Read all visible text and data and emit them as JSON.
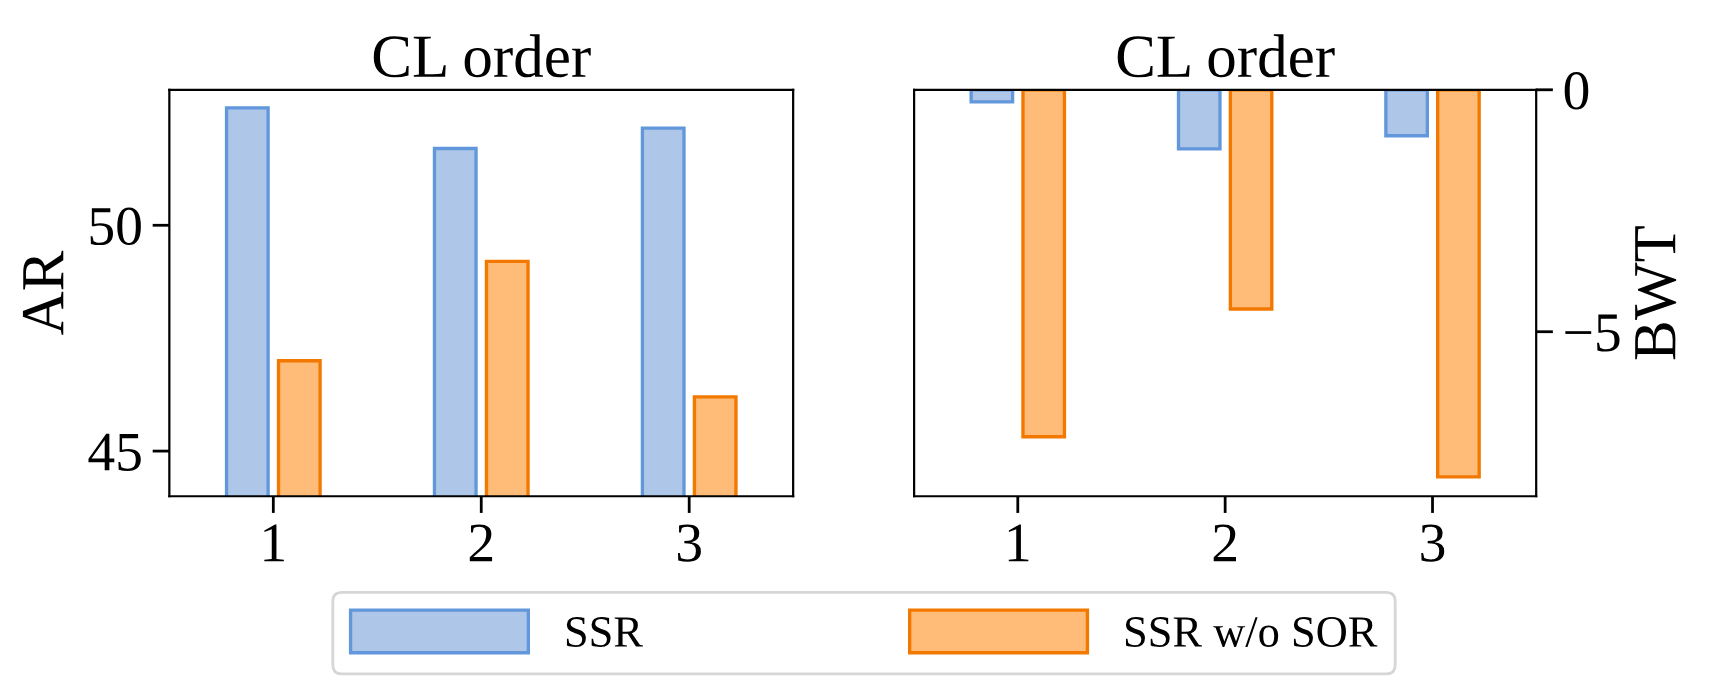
{
  "chart_data": [
    {
      "type": "bar",
      "title": "CL order",
      "ylabel": "AR",
      "categories": [
        "1",
        "2",
        "3"
      ],
      "series": [
        {
          "name": "SSR",
          "color": "#aec7e8",
          "values": [
            52.6,
            51.7,
            52.15
          ]
        },
        {
          "name": "SSR w/o SOR",
          "color": "#ffbb78",
          "values": [
            47.0,
            49.2,
            46.2
          ]
        }
      ],
      "ylim": [
        44,
        53
      ],
      "yticks": [
        45,
        50
      ],
      "grid": false,
      "legend": "bottom"
    },
    {
      "type": "bar",
      "title": "CL order",
      "y2label": "BWT",
      "categories": [
        "1",
        "2",
        "3"
      ],
      "series": [
        {
          "name": "SSR",
          "color": "#aec7e8",
          "values": [
            -0.25,
            -1.22,
            -0.95
          ],
          "axis": "y2"
        },
        {
          "name": "SSR w/o SOR",
          "color": "#ffbb78",
          "values": [
            -7.17,
            -4.53,
            -8.0
          ],
          "axis": "y2"
        }
      ],
      "y2lim": [
        -8.4,
        0
      ],
      "y2ticks": [
        0,
        -5
      ],
      "grid": false,
      "legend": false
    }
  ]
}
